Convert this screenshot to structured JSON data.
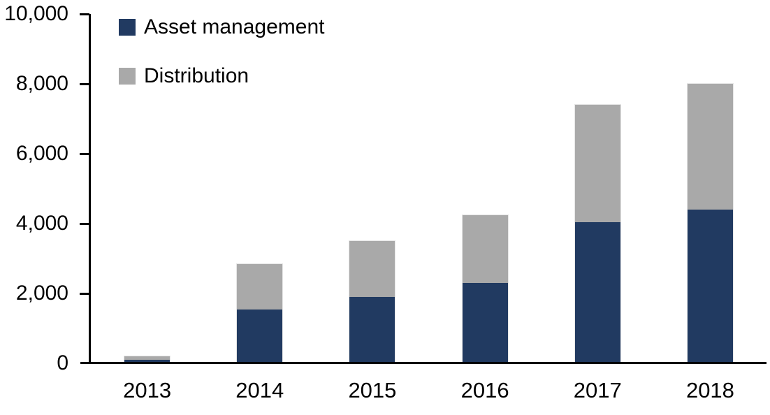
{
  "chart_data": {
    "type": "bar",
    "stacked": true,
    "title": "",
    "xlabel": "",
    "ylabel": "",
    "categories": [
      "2013",
      "2014",
      "2015",
      "2016",
      "2017",
      "2018"
    ],
    "series": [
      {
        "name": "Asset management",
        "color": "#213A61",
        "values": [
          100,
          1550,
          1900,
          2300,
          4050,
          4400
        ]
      },
      {
        "name": "Distribution",
        "color": "#A9A9A9",
        "values": [
          100,
          1300,
          1600,
          1950,
          3350,
          3600
        ]
      }
    ],
    "totals": [
      200,
      2850,
      3500,
      4250,
      7400,
      8000
    ],
    "ylim": [
      0,
      10000
    ],
    "ytick_interval": 2000,
    "ytick_labels": [
      "0",
      "2,000",
      "4,000",
      "6,000",
      "8,000",
      "10,000"
    ],
    "grid": false,
    "legend_position": "top-left-inside"
  },
  "colors": {
    "axis": "#000000",
    "background": "#FFFFFF",
    "bar_outline": "#E6E6E6",
    "text": "#000000"
  }
}
